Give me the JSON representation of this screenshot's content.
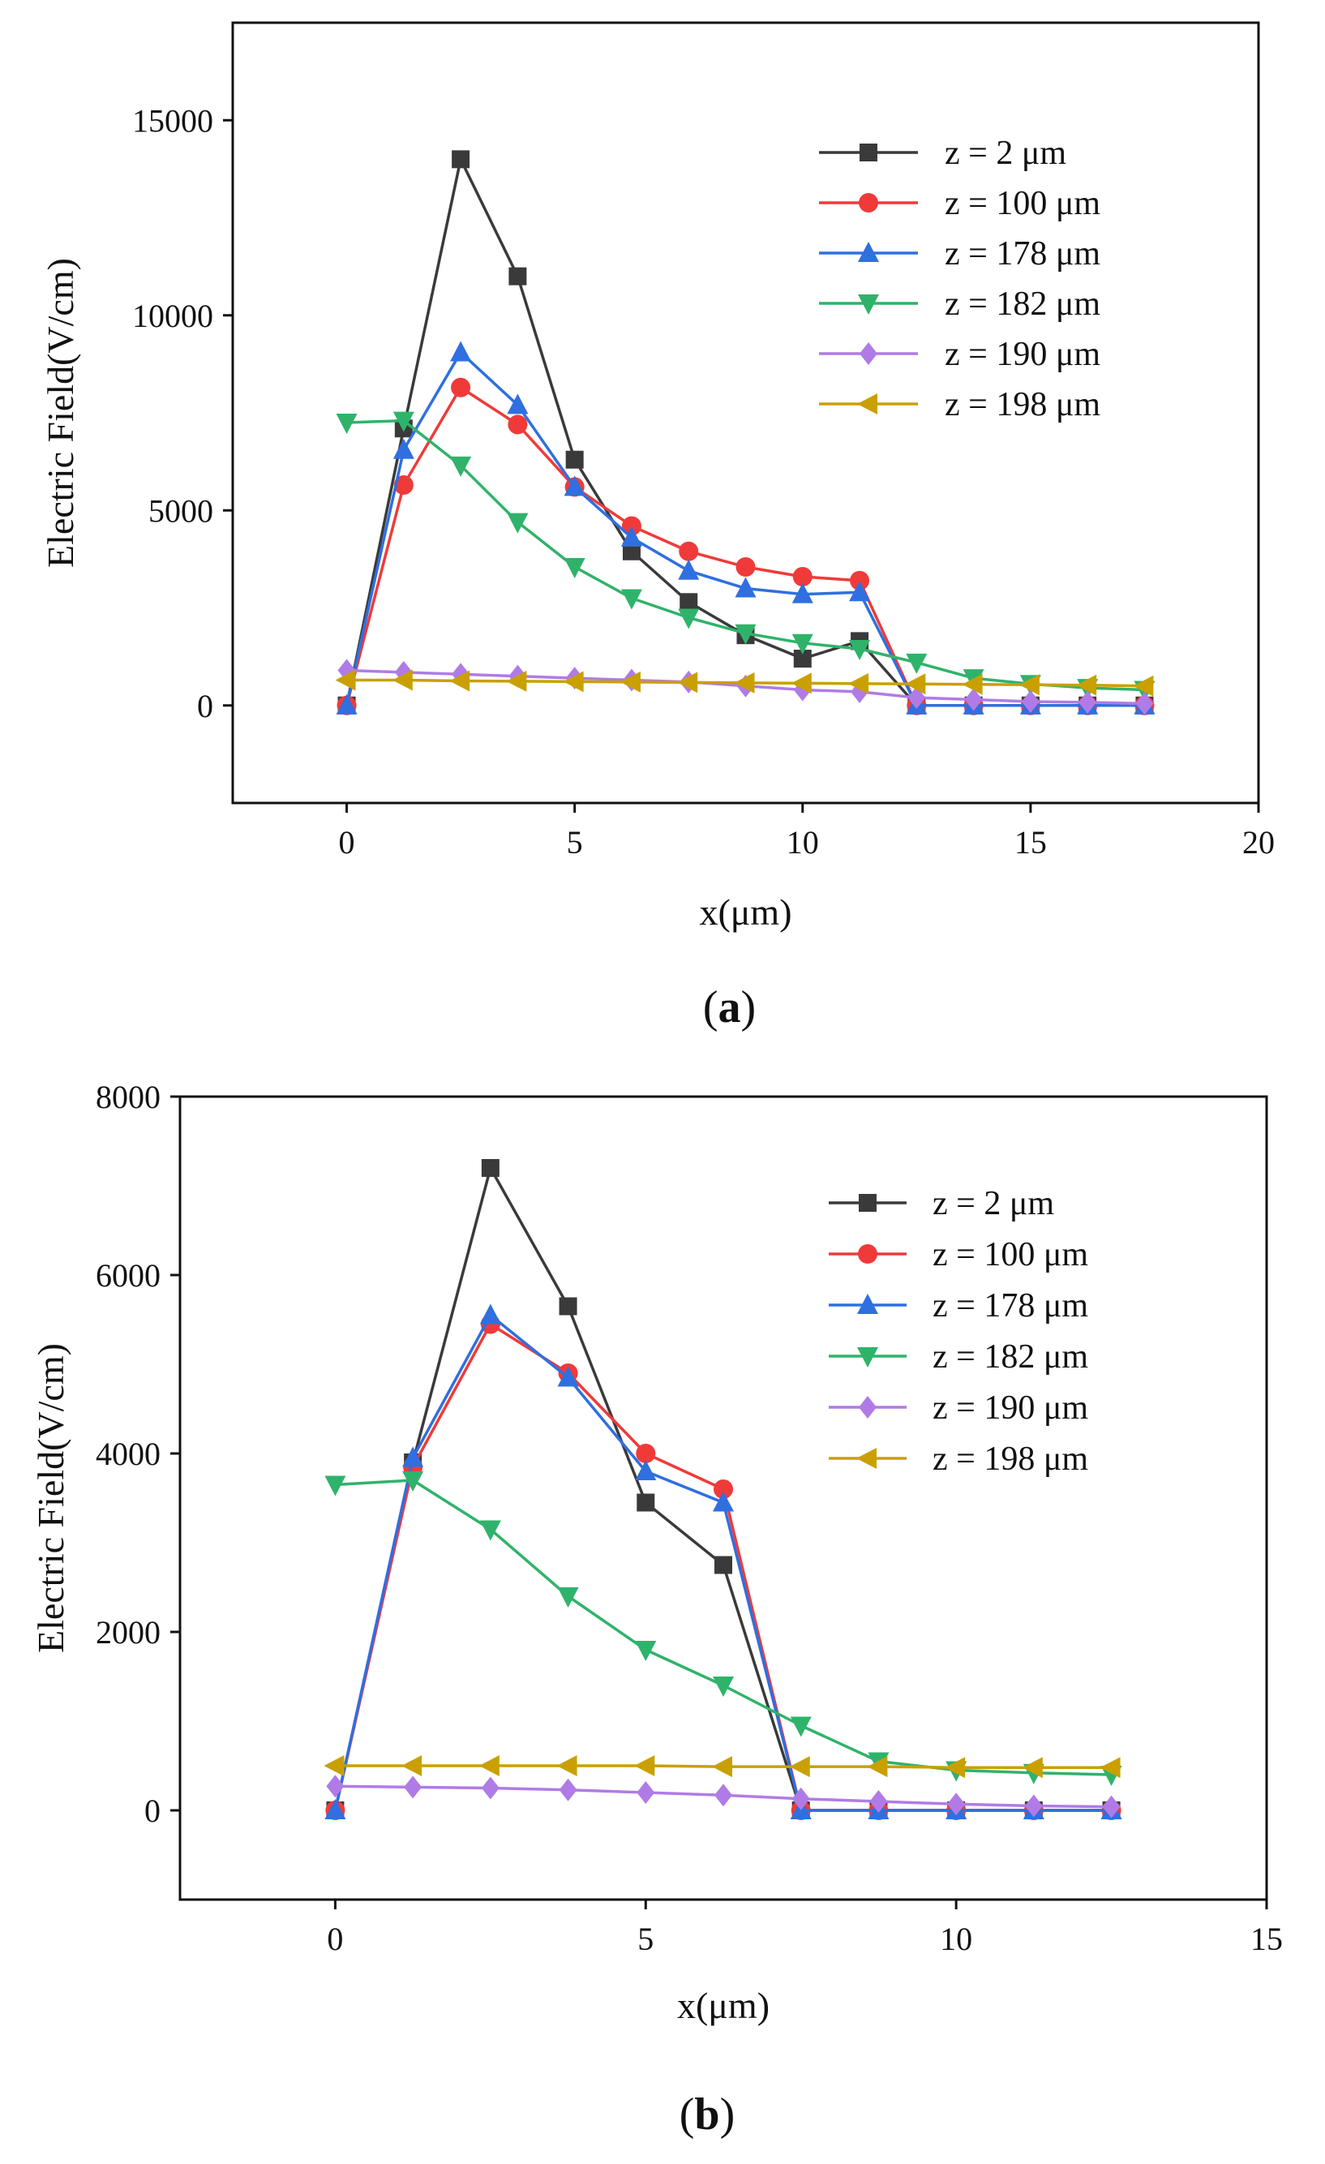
{
  "chart_data": [
    {
      "type": "line",
      "panel_label": "a",
      "xlabel": "x(μm)",
      "ylabel": "Electric Field(V/cm)",
      "xlim": [
        -2.5,
        20
      ],
      "ylim": [
        -2500,
        17500
      ],
      "xticks": [
        0,
        5,
        10,
        15,
        20
      ],
      "yticks": [
        0,
        5000,
        10000,
        15000
      ],
      "grid": false,
      "legend_position": "top-right",
      "x": [
        0,
        1.25,
        2.5,
        3.75,
        5,
        6.25,
        7.5,
        8.75,
        10,
        11.25,
        12.5,
        13.75,
        15,
        16.25,
        17.5
      ],
      "series": [
        {
          "name": "z = 2 μm",
          "color": "#3a3a3a",
          "marker": "square",
          "values": [
            0,
            7100,
            14000,
            11000,
            6300,
            3950,
            2650,
            1800,
            1200,
            1650,
            0,
            0,
            0,
            0,
            0
          ]
        },
        {
          "name": "z = 100 μm",
          "color": "#f03a3a",
          "marker": "circle",
          "values": [
            0,
            5650,
            8150,
            7200,
            5600,
            4600,
            3950,
            3550,
            3300,
            3200,
            0,
            0,
            0,
            0,
            0
          ]
        },
        {
          "name": "z = 178 μm",
          "color": "#2f6fe0",
          "marker": "triangle-up",
          "values": [
            0,
            6550,
            9050,
            7700,
            5600,
            4300,
            3450,
            3000,
            2850,
            2900,
            0,
            0,
            0,
            0,
            0
          ]
        },
        {
          "name": "z = 182 μm",
          "color": "#2fb36a",
          "marker": "triangle-down",
          "values": [
            7250,
            7300,
            6150,
            4700,
            3550,
            2750,
            2250,
            1850,
            1600,
            1450,
            1100,
            700,
            550,
            450,
            400
          ]
        },
        {
          "name": "z = 190 μm",
          "color": "#b07be6",
          "marker": "diamond",
          "values": [
            900,
            850,
            800,
            750,
            700,
            650,
            600,
            500,
            400,
            350,
            200,
            150,
            100,
            80,
            50
          ]
        },
        {
          "name": "z = 198 μm",
          "color": "#c9a000",
          "marker": "triangle-left",
          "values": [
            650,
            650,
            630,
            620,
            610,
            600,
            590,
            580,
            570,
            560,
            550,
            540,
            530,
            520,
            500
          ]
        }
      ]
    },
    {
      "type": "line",
      "panel_label": "b",
      "xlabel": "x(μm)",
      "ylabel": "Electric Field(V/cm)",
      "xlim": [
        -2.5,
        15
      ],
      "ylim": [
        -1000,
        8000
      ],
      "xticks": [
        0,
        5,
        10,
        15
      ],
      "yticks": [
        0,
        2000,
        4000,
        6000,
        8000
      ],
      "grid": false,
      "legend_position": "top-right",
      "x": [
        0,
        1.25,
        2.5,
        3.75,
        5,
        6.25,
        7.5,
        8.75,
        10,
        11.25,
        12.5
      ],
      "series": [
        {
          "name": "z = 2 μm",
          "color": "#3a3a3a",
          "marker": "square",
          "values": [
            0,
            3900,
            7200,
            5650,
            3450,
            2750,
            0,
            0,
            0,
            0,
            0
          ]
        },
        {
          "name": "z = 100 μm",
          "color": "#f03a3a",
          "marker": "circle",
          "values": [
            0,
            3850,
            5450,
            4900,
            4000,
            3600,
            0,
            0,
            0,
            0,
            0
          ]
        },
        {
          "name": "z = 178 μm",
          "color": "#2f6fe0",
          "marker": "triangle-up",
          "values": [
            0,
            3950,
            5550,
            4850,
            3800,
            3450,
            0,
            0,
            0,
            0,
            0
          ]
        },
        {
          "name": "z = 182 μm",
          "color": "#2fb36a",
          "marker": "triangle-down",
          "values": [
            3650,
            3700,
            3150,
            2400,
            1800,
            1400,
            950,
            550,
            450,
            420,
            400
          ]
        },
        {
          "name": "z = 190 μm",
          "color": "#b07be6",
          "marker": "diamond",
          "values": [
            270,
            260,
            250,
            230,
            200,
            170,
            130,
            100,
            70,
            50,
            40
          ]
        },
        {
          "name": "z = 198 μm",
          "color": "#c9a000",
          "marker": "triangle-left",
          "values": [
            500,
            500,
            500,
            500,
            500,
            490,
            490,
            490,
            480,
            480,
            480
          ]
        }
      ]
    }
  ]
}
